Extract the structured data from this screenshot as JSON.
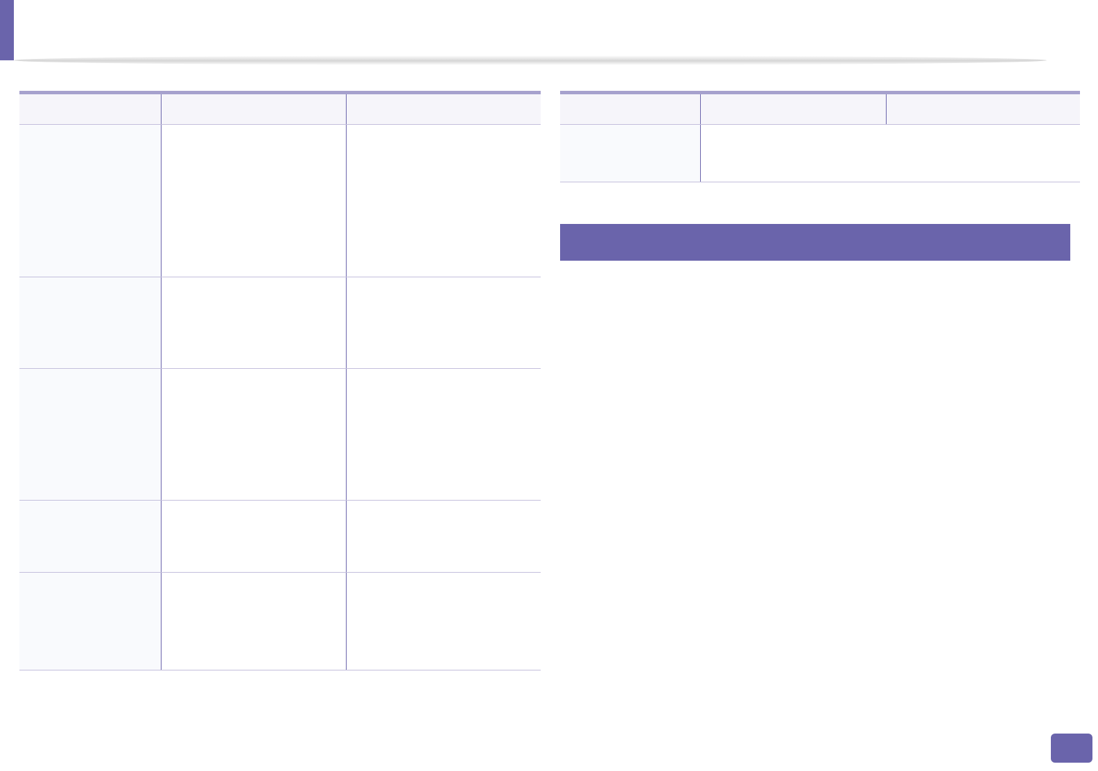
{
  "colors": {
    "accent": "#6a64ab",
    "header_rule": "#a6a1cd",
    "row_rule": "#c3bedc",
    "header_bg": "#f6f5fa"
  },
  "left_table": {
    "headers": [
      "",
      "",
      ""
    ],
    "rows": [
      [
        "",
        "",
        ""
      ],
      [
        "",
        "",
        ""
      ],
      [
        "",
        "",
        ""
      ],
      [
        "",
        "",
        ""
      ],
      [
        "",
        "",
        ""
      ]
    ]
  },
  "right_table": {
    "headers": [
      "",
      "",
      ""
    ],
    "rows": [
      [
        "",
        ""
      ]
    ]
  },
  "section_bar": {
    "title": ""
  },
  "page_number": ""
}
